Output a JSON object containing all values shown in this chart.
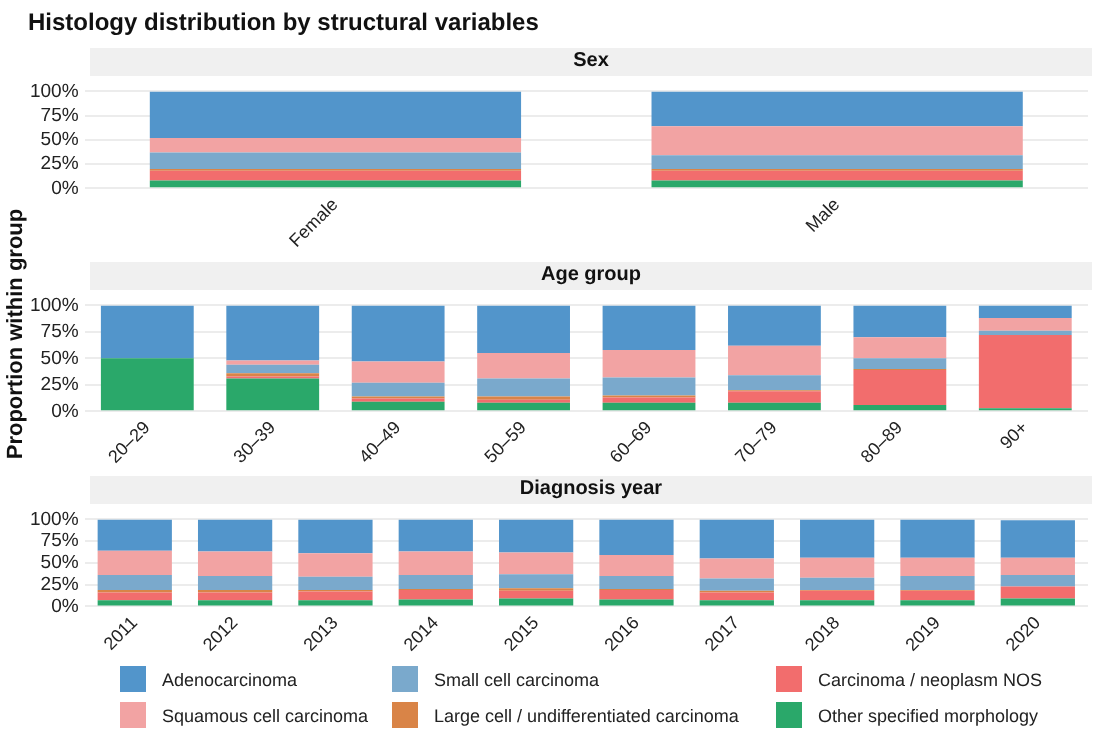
{
  "chart_data": [
    {
      "type": "bar",
      "title": "Histology distribution by structural variables",
      "subtitle": "Sex",
      "categories": [
        "Female",
        "Male"
      ],
      "stacked": true,
      "ylim": [
        0,
        100
      ],
      "yticks": [
        {
          "value": 0,
          "label": "0%"
        },
        {
          "value": 25,
          "label": "25%"
        },
        {
          "value": 50,
          "label": "50%"
        },
        {
          "value": 75,
          "label": "75%"
        },
        {
          "value": 100,
          "label": "100%"
        }
      ],
      "grid": "y",
      "series": [
        {
          "color": "#2aa86a",
          "values": [
            8,
            8
          ]
        },
        {
          "color": "#f26d6d",
          "values": [
            10,
            10
          ]
        },
        {
          "color": "#d98447",
          "values": [
            2,
            2
          ]
        },
        {
          "color": "#7aa9cc",
          "values": [
            17,
            14
          ]
        },
        {
          "color": "#f2a3a3",
          "values": [
            15,
            30
          ]
        },
        {
          "color": "#5295cb",
          "values": [
            48,
            36
          ]
        }
      ]
    },
    {
      "type": "bar",
      "subtitle": "Age group",
      "ylabel": "Proportion within group",
      "categories": [
        "20–29",
        "30–39",
        "40–49",
        "50–59",
        "60–69",
        "70–79",
        "80–89",
        "90+"
      ],
      "stacked": true,
      "ylim": [
        0,
        100
      ],
      "yticks": [
        {
          "value": 0,
          "label": "0%"
        },
        {
          "value": 25,
          "label": "25%"
        },
        {
          "value": 50,
          "label": "50%"
        },
        {
          "value": 75,
          "label": "75%"
        },
        {
          "value": 100,
          "label": "100%"
        }
      ],
      "grid": "y",
      "series": [
        {
          "color": "#2aa86a",
          "values": [
            50,
            31,
            9,
            8,
            8,
            8,
            6,
            3
          ]
        },
        {
          "color": "#f26d6d",
          "values": [
            0,
            2,
            3,
            3,
            5,
            11,
            33,
            69
          ]
        },
        {
          "color": "#d98447",
          "values": [
            0,
            3,
            2,
            3,
            2,
            1,
            1,
            0
          ]
        },
        {
          "color": "#7aa9cc",
          "values": [
            0,
            8,
            13,
            17,
            17,
            14,
            10,
            4
          ]
        },
        {
          "color": "#f2a3a3",
          "values": [
            0,
            4,
            20,
            24,
            26,
            28,
            20,
            12
          ]
        },
        {
          "color": "#5295cb",
          "values": [
            50,
            52,
            53,
            45,
            42,
            38,
            30,
            12
          ]
        }
      ]
    },
    {
      "type": "bar",
      "subtitle": "Diagnosis year",
      "categories": [
        "2011",
        "2012",
        "2013",
        "2014",
        "2015",
        "2016",
        "2017",
        "2018",
        "2019",
        "2020"
      ],
      "stacked": true,
      "ylim": [
        0,
        100
      ],
      "yticks": [
        {
          "value": 0,
          "label": "0%"
        },
        {
          "value": 25,
          "label": "25%"
        },
        {
          "value": 50,
          "label": "50%"
        },
        {
          "value": 75,
          "label": "75%"
        },
        {
          "value": 100,
          "label": "100%"
        }
      ],
      "grid": "y",
      "legend": "bottom",
      "series": [
        {
          "name": "Other specified morphology",
          "color": "#2aa86a",
          "values": [
            7,
            7,
            7,
            8,
            9,
            8,
            7,
            7,
            7,
            9
          ]
        },
        {
          "name": "Carcinoma / neoplasm NOS",
          "color": "#f26d6d",
          "values": [
            9,
            9,
            10,
            11,
            9,
            11,
            9,
            11,
            11,
            14
          ]
        },
        {
          "name": "Large cell / undifferentiated carcinoma",
          "color": "#d98447",
          "values": [
            3,
            3,
            2,
            1,
            3,
            1,
            2,
            1,
            1,
            null
          ]
        },
        {
          "name": "Small cell carcinoma",
          "color": "#7aa9cc",
          "values": [
            17,
            16,
            15,
            16,
            16,
            15,
            14,
            14,
            16,
            13
          ]
        },
        {
          "name": "Squamous cell carcinoma",
          "color": "#f2a3a3",
          "values": [
            28,
            28,
            27,
            27,
            25,
            24,
            23,
            23,
            21,
            20
          ]
        },
        {
          "name": "Adenocarcinoma",
          "color": "#5295cb",
          "values": [
            36,
            37,
            39,
            37,
            38,
            41,
            45,
            44,
            44,
            43
          ]
        }
      ]
    }
  ]
}
